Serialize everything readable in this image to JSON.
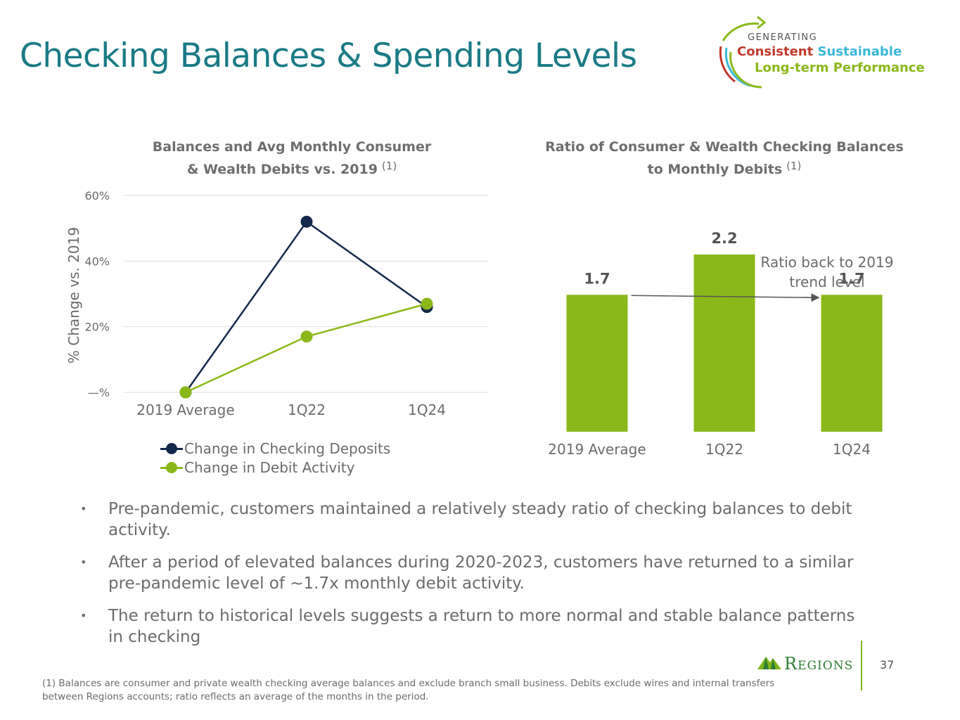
{
  "title": "Checking Balances & Spending Levels",
  "logo": {
    "generating": "GENERATING",
    "consistent": "Consistent",
    "sustainable": "Sustainable",
    "longterm": "Long-term Performance"
  },
  "colors": {
    "title": "#1a7a86",
    "navy": "#13294b",
    "green": "#8ab81a",
    "logo_red": "#c0392b",
    "logo_cyan": "#3bb8d9"
  },
  "chart_data": [
    {
      "type": "line",
      "title": "Balances and Avg Monthly Consumer & Wealth Debits  vs. 2019",
      "title_line1": "Balances and Avg Monthly Consumer",
      "title_line2": "& Wealth Debits  vs. 2019",
      "footnote_ref": "(1)",
      "ylabel": "% Change vs. 2019",
      "categories": [
        "2019 Average",
        "1Q22",
        "1Q24"
      ],
      "y_ticks": [
        "—%",
        "20%",
        "40%",
        "60%"
      ],
      "ylim": [
        0,
        60
      ],
      "grid": true,
      "legend_position": "bottom",
      "series": [
        {
          "name": "Change in Checking Deposits",
          "values": [
            0,
            52,
            26
          ],
          "color": "#13294b"
        },
        {
          "name": "Change in Debit Activity",
          "values": [
            0,
            17,
            27
          ],
          "color": "#8ab81a"
        }
      ]
    },
    {
      "type": "bar",
      "title": "Ratio of Consumer & Wealth Checking Balances to Monthly Debits",
      "title_line1": "Ratio of Consumer & Wealth Checking Balances",
      "title_line2": "to Monthly Debits",
      "footnote_ref": "(1)",
      "categories": [
        "2019 Average",
        "1Q22",
        "1Q24"
      ],
      "values": [
        1.7,
        2.2,
        1.7
      ],
      "value_labels": [
        "1.7",
        "2.2",
        "1.7"
      ],
      "ylim": [
        0,
        2.2
      ],
      "color": "#8ab81a",
      "annotation": "Ratio back to 2019 trend level"
    }
  ],
  "bullets": [
    "Pre-pandemic, customers maintained a relatively steady ratio of checking balances to debit activity.",
    "After a period of elevated balances during 2020-2023, customers have returned to a similar pre-pandemic level of ~1.7x monthly debit activity.",
    "The return to historical levels suggests a return to more normal and stable balance patterns in checking"
  ],
  "bullet_symbol": "•",
  "footnote": "(1) Balances are consumer and private wealth checking average balances and exclude branch small business. Debits exclude wires and internal transfers between Regions accounts; ratio reflects an average of the months in the period.",
  "brand": "Regions",
  "page_number": "37"
}
